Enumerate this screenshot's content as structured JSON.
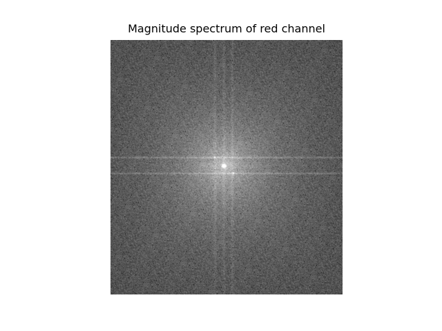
{
  "figure": {
    "title": "Magnitude spectrum of red channel"
  },
  "image": {
    "kind": "magnitude-spectrum",
    "colormap": "gray",
    "axes_visible": false,
    "colors": {
      "background": "#ffffff",
      "spectrum_base": "#6e6e6e",
      "spectrum_peak": "#ffffff"
    }
  }
}
